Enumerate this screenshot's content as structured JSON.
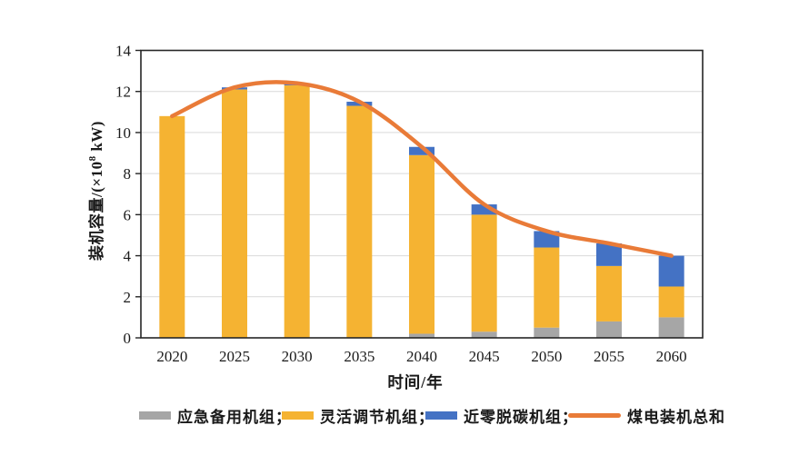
{
  "chart_data": {
    "type": "bar",
    "subtype": "stacked-bars-with-total-line",
    "title": "",
    "xlabel": "时间/年",
    "ylabel": "装机容量/(×10⁸ kW)",
    "ylabel_parts": {
      "pre": "装机容量/(×10",
      "sup": "8",
      "post": " kW)"
    },
    "categories": [
      "2020",
      "2025",
      "2030",
      "2035",
      "2040",
      "2045",
      "2050",
      "2055",
      "2060"
    ],
    "bar_series": [
      {
        "name": "应急备用机组",
        "color": "#A6A6A6",
        "values": [
          0,
          0,
          0,
          0,
          0.2,
          0.3,
          0.5,
          0.8,
          1.0
        ]
      },
      {
        "name": "灵活调节机组",
        "color": "#F5B332",
        "values": [
          10.8,
          12.1,
          12.3,
          11.3,
          8.7,
          5.7,
          3.9,
          2.7,
          1.5
        ]
      },
      {
        "name": "近零脱碳机组",
        "color": "#4472C4",
        "values": [
          0,
          0.1,
          0.1,
          0.2,
          0.4,
          0.5,
          0.8,
          1.1,
          1.5
        ]
      }
    ],
    "line_series": {
      "name": "煤电装机总和",
      "color": "#E97B38",
      "values": [
        10.8,
        12.2,
        12.4,
        11.5,
        9.3,
        6.5,
        5.2,
        4.6,
        4.0
      ]
    },
    "ylim": [
      0,
      14
    ],
    "ytick_step": 2,
    "yticks": [
      0,
      2,
      4,
      6,
      8,
      10,
      12,
      14
    ],
    "grid": true,
    "legend_position": "bottom",
    "colors": {
      "grid": "#D9D9D9",
      "axis": "#262626",
      "text": "#1A1A1A",
      "background": "#FFFFFF"
    }
  },
  "legend": {
    "items": [
      {
        "label": "应急备用机组；",
        "swatch": "rect",
        "color": "#A6A6A6"
      },
      {
        "label": "灵活调节机组；",
        "swatch": "rect",
        "color": "#F5B332"
      },
      {
        "label": "近零脱碳机组；",
        "swatch": "rect",
        "color": "#4472C4"
      },
      {
        "label": "煤电装机总和",
        "swatch": "line",
        "color": "#E97B38"
      }
    ]
  }
}
